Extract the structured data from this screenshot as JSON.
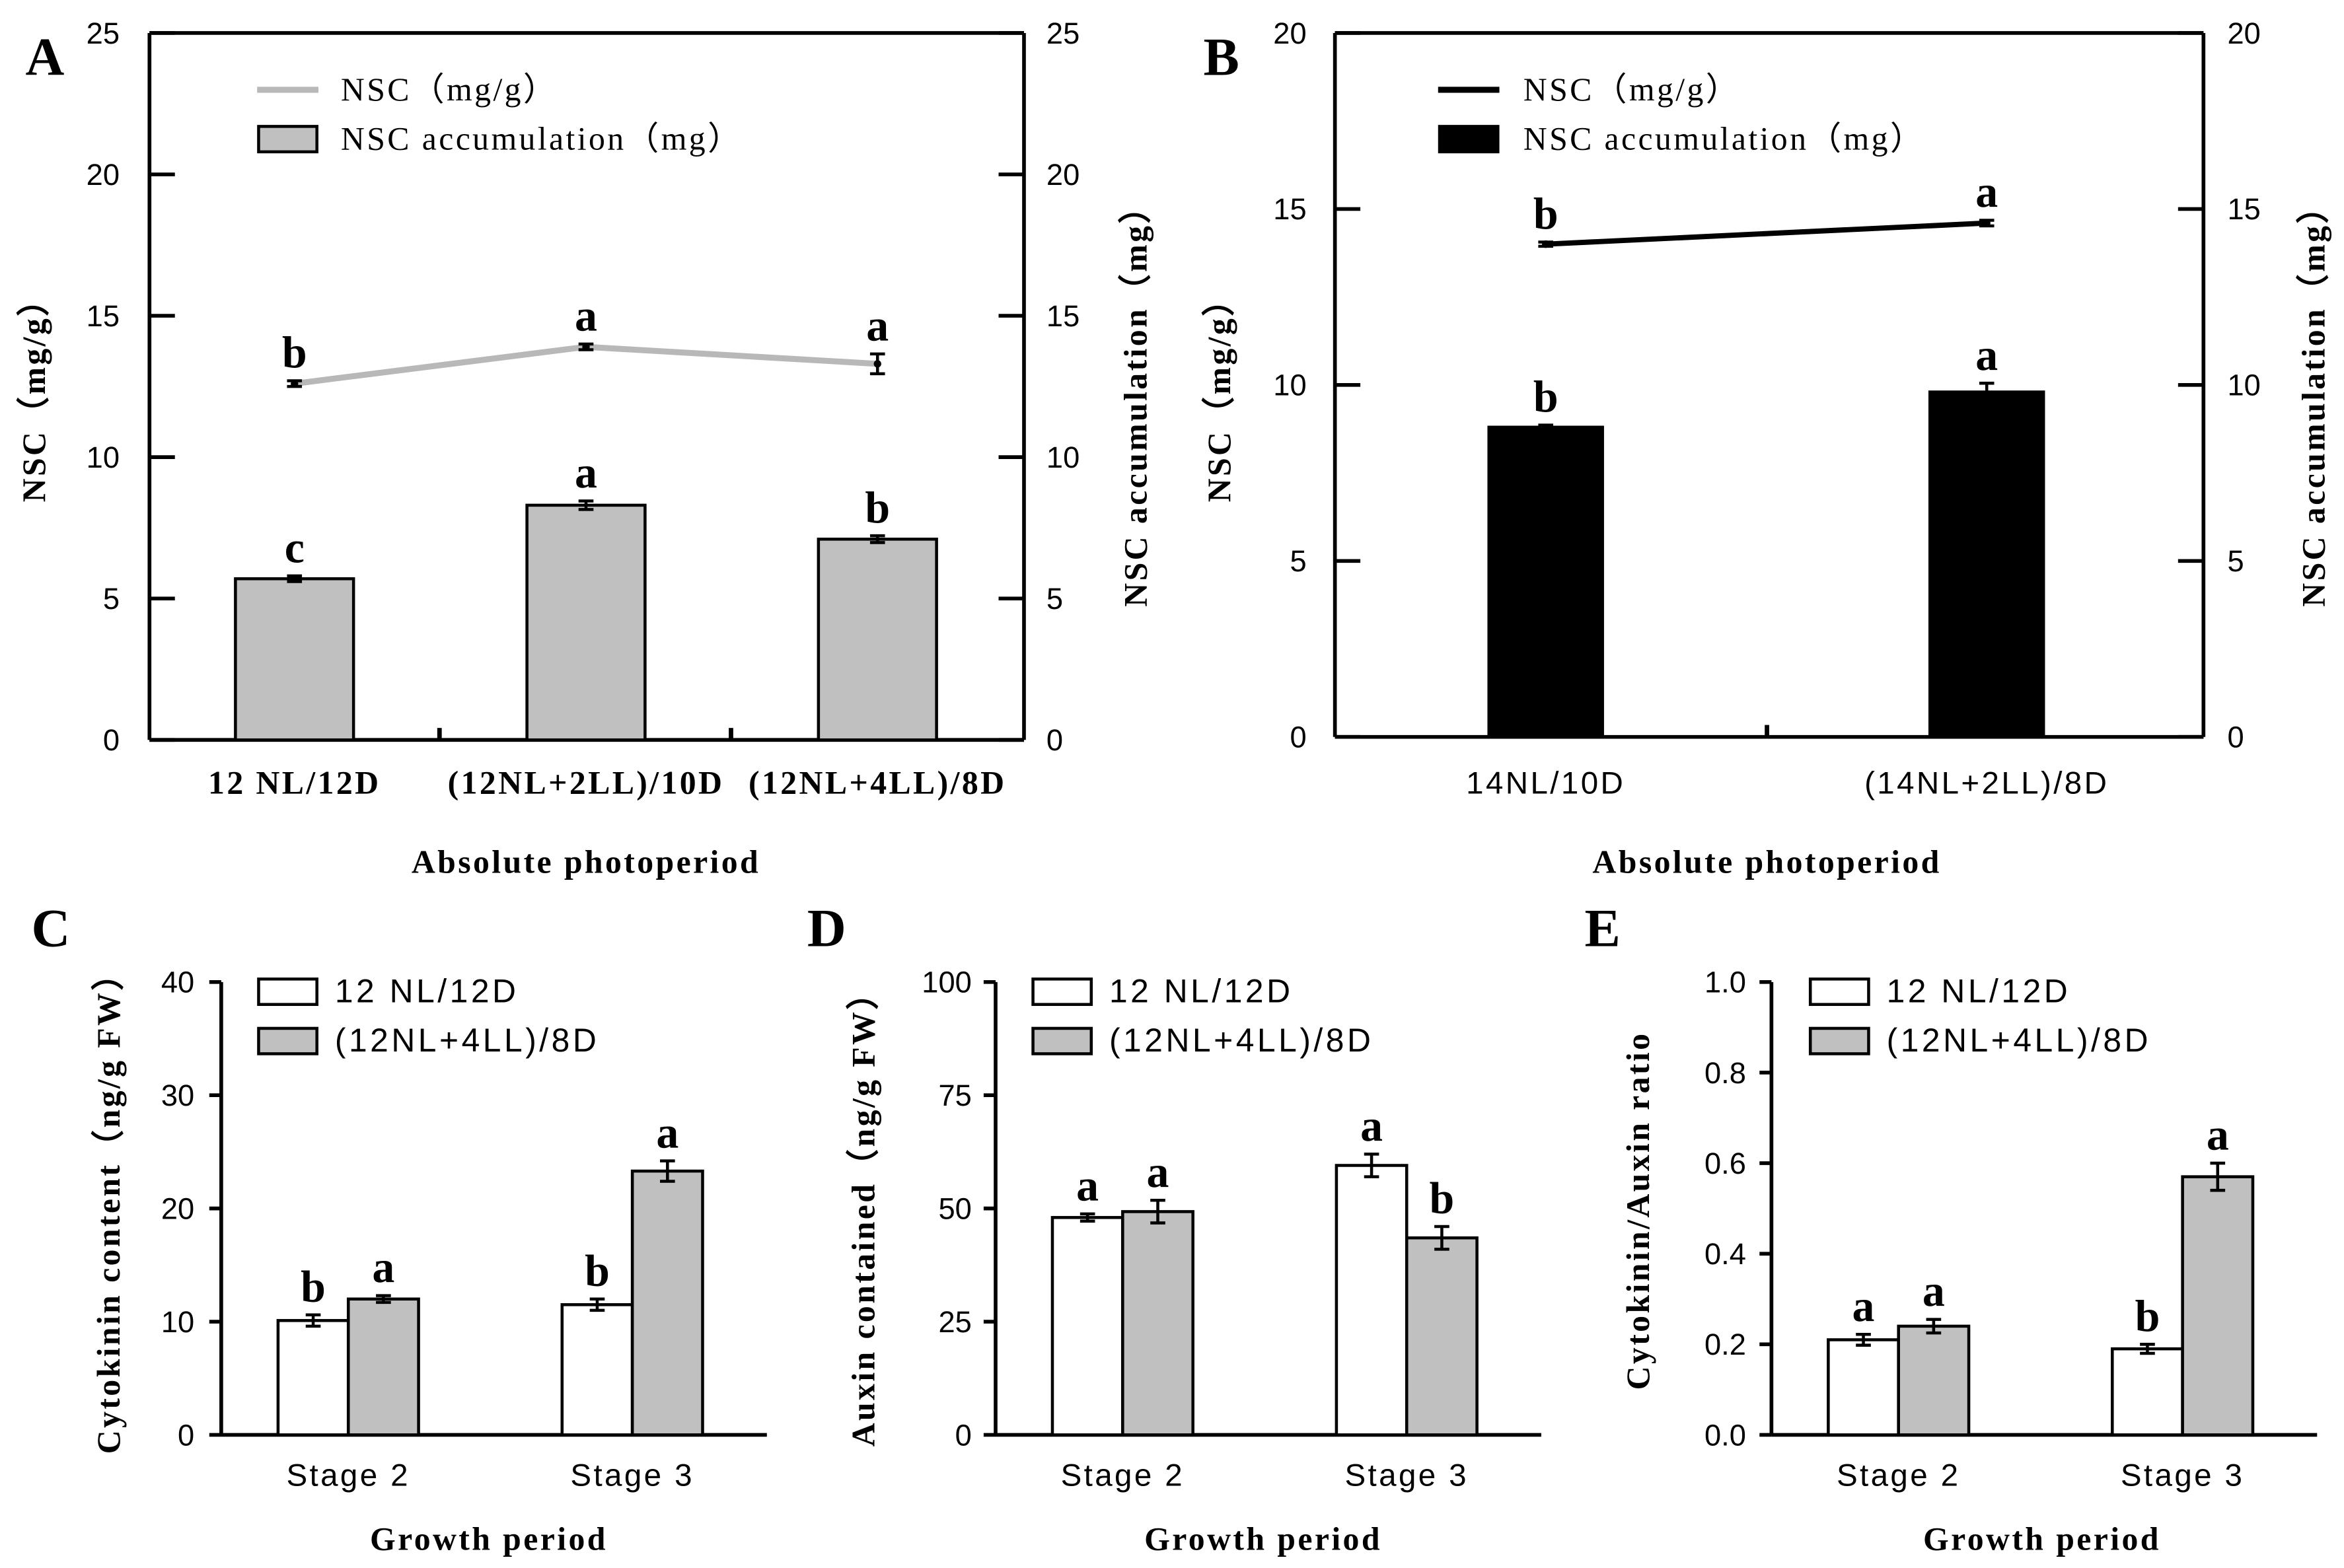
{
  "figure": {
    "background": "#ffffff"
  },
  "chart_data": [
    {
      "panel": "A",
      "type": "bar",
      "xlabel": "Absolute photoperiod",
      "ylabel": "NSC（mg/g）",
      "ylabel_right": "NSC accumulation（mg）",
      "categories": [
        "12 NL/12D",
        "(12NL+2LL)/10D",
        "(12NL+4LL)/8D"
      ],
      "ylim": [
        0,
        25
      ],
      "ylim_right": [
        0,
        25
      ],
      "yticks": [
        "0",
        "5",
        "10",
        "15",
        "20",
        "25"
      ],
      "yticks_right": [
        "0",
        "5",
        "10",
        "15",
        "20",
        "25"
      ],
      "legend": "top-left",
      "series": [
        {
          "name": "NSC（mg/g）",
          "type": "line",
          "secondary_y": false,
          "color": "#b8b8b8",
          "values": [
            12.6,
            13.9,
            13.3
          ],
          "errors": [
            0.1,
            0.1,
            0.35
          ],
          "letters": [
            "b",
            "a",
            "a"
          ]
        },
        {
          "name": "NSC accumulation（mg）",
          "type": "bar",
          "secondary_y": true,
          "color": "#c0c0c0",
          "values": [
            5.7,
            8.3,
            7.1
          ],
          "errors": [
            0.1,
            0.15,
            0.12
          ],
          "letters": [
            "c",
            "a",
            "b"
          ]
        }
      ]
    },
    {
      "panel": "B",
      "type": "bar",
      "xlabel": "Absolute photoperiod",
      "ylabel": "NSC（mg/g）",
      "ylabel_right": "NSC accumulation（mg）",
      "categories": [
        "14NL/10D",
        "(14NL+2LL)/8D"
      ],
      "ylim": [
        0,
        20
      ],
      "ylim_right": [
        0,
        20
      ],
      "yticks": [
        "0",
        "5",
        "10",
        "15",
        "20"
      ],
      "yticks_right": [
        "0",
        "5",
        "10",
        "15",
        "20"
      ],
      "legend": "top-left",
      "series": [
        {
          "name": "NSC（mg/g）",
          "type": "line",
          "secondary_y": false,
          "color": "#000000",
          "values": [
            14.0,
            14.6
          ],
          "errors": [
            0.06,
            0.08
          ],
          "letters": [
            "b",
            "a"
          ]
        },
        {
          "name": "NSC accumulation（mg）",
          "type": "bar",
          "secondary_y": true,
          "color": "#000000",
          "values": [
            8.8,
            9.8
          ],
          "errors": [
            0.06,
            0.25
          ],
          "letters": [
            "b",
            "a"
          ]
        }
      ]
    },
    {
      "panel": "C",
      "type": "bar",
      "xlabel": "Growth period",
      "ylabel": "Cytokinin content（ng/g FW）",
      "categories": [
        "Stage 2",
        "Stage 3"
      ],
      "ylim": [
        0,
        40
      ],
      "yticks": [
        "0",
        "10",
        "20",
        "30",
        "40"
      ],
      "legend": "top-left",
      "series": [
        {
          "name": "12 NL/12D",
          "type": "bar",
          "color": "#ffffff",
          "values": [
            10.1,
            11.5
          ],
          "errors": [
            0.5,
            0.5
          ],
          "letters": [
            "b",
            "b"
          ]
        },
        {
          "name": "(12NL+4LL)/8D",
          "type": "bar",
          "color": "#c0c0c0",
          "values": [
            12.0,
            23.3
          ],
          "errors": [
            0.3,
            0.9
          ],
          "letters": [
            "a",
            "a"
          ]
        }
      ]
    },
    {
      "panel": "D",
      "type": "bar",
      "xlabel": "Growth period",
      "ylabel": "Auxin contained（ng/g FW）",
      "categories": [
        "Stage 2",
        "Stage 3"
      ],
      "ylim": [
        0,
        100
      ],
      "yticks": [
        "0",
        "25",
        "50",
        "75",
        "100"
      ],
      "legend": "top-left",
      "series": [
        {
          "name": "12 NL/12D",
          "type": "bar",
          "color": "#ffffff",
          "values": [
            48.0,
            59.5
          ],
          "errors": [
            0.8,
            2.5
          ],
          "letters": [
            "a",
            "a"
          ]
        },
        {
          "name": "(12NL+4LL)/8D",
          "type": "bar",
          "color": "#c0c0c0",
          "values": [
            49.3,
            43.5
          ],
          "errors": [
            2.5,
            2.5
          ],
          "letters": [
            "a",
            "b"
          ]
        }
      ]
    },
    {
      "panel": "E",
      "type": "bar",
      "xlabel": "Growth period",
      "ylabel": "Cytokinin/Auxin ratio",
      "categories": [
        "Stage 2",
        "Stage 3"
      ],
      "ylim": [
        0,
        1.0
      ],
      "yticks": [
        "0.0",
        "0.2",
        "0.4",
        "0.6",
        "0.8",
        "1.0"
      ],
      "legend": "top-left",
      "series": [
        {
          "name": "12 NL/12D",
          "type": "bar",
          "color": "#ffffff",
          "values": [
            0.21,
            0.19
          ],
          "errors": [
            0.012,
            0.01
          ],
          "letters": [
            "a",
            "b"
          ]
        },
        {
          "name": "(12NL+4LL)/8D",
          "type": "bar",
          "color": "#c0c0c0",
          "values": [
            0.24,
            0.57
          ],
          "errors": [
            0.015,
            0.03
          ],
          "letters": [
            "a",
            "a"
          ]
        }
      ]
    }
  ]
}
